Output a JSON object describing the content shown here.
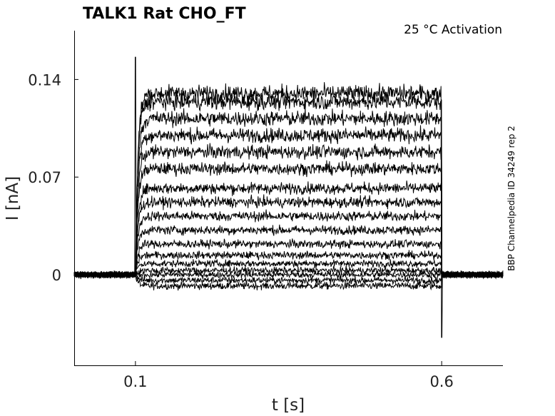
{
  "chart_data": {
    "type": "line",
    "title": "TALK1  Rat  CHO_FT",
    "subtitle": "25 °C  Activation",
    "side_note": "BBP Channelpedia ID 34249 rep 2",
    "xlabel": "t [s]",
    "ylabel": "I [nA]",
    "xlim": [
      0.0,
      0.7
    ],
    "ylim": [
      -0.065,
      0.175
    ],
    "xticks": [
      {
        "value": 0.1,
        "label": "0.1"
      },
      {
        "value": 0.6,
        "label": "0.6"
      }
    ],
    "yticks": [
      {
        "value": 0,
        "label": "0"
      },
      {
        "value": 0.07,
        "label": "0.07"
      },
      {
        "value": 0.14,
        "label": "0.14"
      }
    ],
    "grid": false,
    "line_color": "#000000",
    "stimulus": {
      "on": 0.1,
      "off": 0.6
    },
    "steady_state_levels": [
      -0.008,
      -0.004,
      0.0,
      0.003,
      0.008,
      0.014,
      0.022,
      0.032,
      0.042,
      0.052,
      0.062,
      0.076,
      0.088,
      0.1,
      0.112,
      0.124,
      0.13
    ],
    "noise_amplitude": 0.004,
    "onset_peak": 0.156,
    "offset_trough": -0.045
  }
}
